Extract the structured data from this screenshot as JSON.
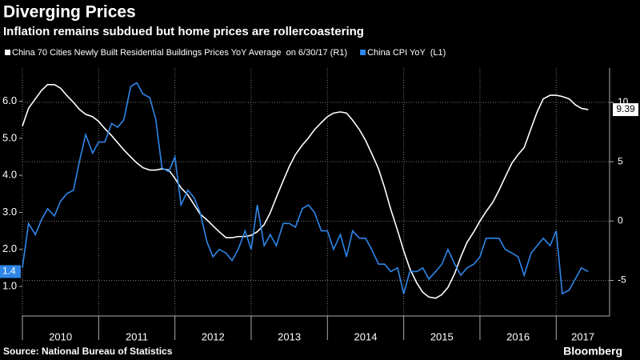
{
  "chart_data": {
    "type": "line",
    "title": "Diverging Prices",
    "subtitle": "Inflation remains subdued but home prices are rollercoastering",
    "source": "Source: National Bureau of Statistics",
    "brand": "Bloomberg",
    "x": [
      2010.0,
      2010.08,
      2010.17,
      2010.25,
      2010.33,
      2010.42,
      2010.5,
      2010.58,
      2010.67,
      2010.75,
      2010.83,
      2010.92,
      2011.0,
      2011.08,
      2011.17,
      2011.25,
      2011.33,
      2011.42,
      2011.5,
      2011.58,
      2011.67,
      2011.75,
      2011.83,
      2011.92,
      2012.0,
      2012.08,
      2012.17,
      2012.25,
      2012.33,
      2012.42,
      2012.5,
      2012.58,
      2012.67,
      2012.75,
      2012.83,
      2012.92,
      2013.0,
      2013.08,
      2013.17,
      2013.25,
      2013.33,
      2013.42,
      2013.5,
      2013.58,
      2013.67,
      2013.75,
      2013.83,
      2013.92,
      2014.0,
      2014.08,
      2014.17,
      2014.25,
      2014.33,
      2014.42,
      2014.5,
      2014.58,
      2014.67,
      2014.75,
      2014.83,
      2014.92,
      2015.0,
      2015.08,
      2015.17,
      2015.25,
      2015.33,
      2015.42,
      2015.5,
      2015.58,
      2015.67,
      2015.75,
      2015.83,
      2015.92,
      2016.0,
      2016.08,
      2016.17,
      2016.25,
      2016.33,
      2016.42,
      2016.5,
      2016.58,
      2016.67,
      2016.75,
      2016.83,
      2016.92,
      2017.0,
      2017.08,
      2017.17,
      2017.25,
      2017.33,
      2017.42
    ],
    "xlim": [
      2010.0,
      2017.7
    ],
    "xticks": [
      2010,
      2011,
      2012,
      2013,
      2014,
      2015,
      2016,
      2017
    ],
    "ylim": [
      0.2,
      6.9
    ],
    "yticks": [
      {
        "value": 1,
        "label": "1.0"
      },
      {
        "value": 2,
        "label": "2.0"
      },
      {
        "value": 3,
        "label": "3.0"
      },
      {
        "value": 4,
        "label": "4.0"
      },
      {
        "value": 5,
        "label": "5.0"
      },
      {
        "value": 6,
        "label": "6.0"
      }
    ],
    "y2lim": [
      -8,
      12.9
    ],
    "y2ticks": [
      -5,
      0,
      5,
      10
    ],
    "grid": true,
    "series": [
      {
        "name": "China 70 Cities Newly Built Residential Buildings Prices YoY Average  on 6/30/17 (R1)",
        "color": "#ffffff",
        "axis": "y2",
        "values": [
          8.0,
          9.5,
          10.3,
          11.0,
          11.5,
          11.5,
          11.2,
          10.6,
          10.0,
          9.4,
          9.0,
          8.8,
          8.4,
          7.8,
          7.2,
          6.6,
          6.0,
          5.4,
          4.9,
          4.5,
          4.3,
          4.3,
          4.4,
          4.3,
          3.6,
          2.8,
          2.2,
          1.4,
          0.6,
          0.1,
          -0.4,
          -0.9,
          -1.4,
          -1.4,
          -1.3,
          -1.3,
          -1.2,
          -0.9,
          -0.3,
          0.7,
          2.0,
          3.4,
          4.6,
          5.6,
          6.4,
          7.0,
          7.7,
          8.3,
          8.8,
          9.1,
          9.2,
          9.1,
          8.5,
          7.7,
          6.8,
          5.7,
          4.4,
          2.8,
          1.0,
          -0.8,
          -2.5,
          -4.0,
          -5.2,
          -6.0,
          -6.4,
          -6.5,
          -6.2,
          -5.6,
          -4.4,
          -3.0,
          -1.8,
          -0.9,
          0.0,
          0.8,
          1.6,
          2.6,
          3.7,
          4.9,
          5.6,
          6.2,
          7.8,
          9.2,
          10.3,
          10.6,
          10.6,
          10.5,
          10.3,
          9.8,
          9.5,
          9.39
        ]
      },
      {
        "name": "China CPI YoY  (L1)",
        "color": "#2f86e8",
        "axis": "y",
        "values": [
          1.5,
          2.7,
          2.4,
          2.8,
          3.1,
          2.9,
          3.3,
          3.5,
          3.6,
          4.4,
          5.1,
          4.6,
          4.9,
          4.9,
          5.4,
          5.3,
          5.5,
          6.4,
          6.5,
          6.2,
          6.1,
          5.5,
          4.2,
          4.1,
          4.5,
          3.2,
          3.6,
          3.4,
          3.0,
          2.2,
          1.8,
          2.0,
          1.9,
          1.7,
          2.0,
          2.5,
          2.0,
          3.2,
          2.1,
          2.4,
          2.1,
          2.7,
          2.7,
          2.6,
          3.1,
          3.2,
          3.0,
          2.5,
          2.5,
          2.0,
          2.4,
          1.8,
          2.5,
          2.3,
          2.3,
          2.0,
          1.6,
          1.6,
          1.4,
          1.5,
          0.8,
          1.4,
          1.4,
          1.5,
          1.2,
          1.4,
          1.6,
          2.0,
          1.6,
          1.3,
          1.5,
          1.6,
          1.8,
          2.3,
          2.3,
          2.3,
          2.0,
          1.9,
          1.8,
          1.3,
          1.9,
          2.1,
          2.3,
          2.1,
          2.5,
          0.8,
          0.9,
          1.2,
          1.5,
          1.4
        ]
      }
    ]
  }
}
